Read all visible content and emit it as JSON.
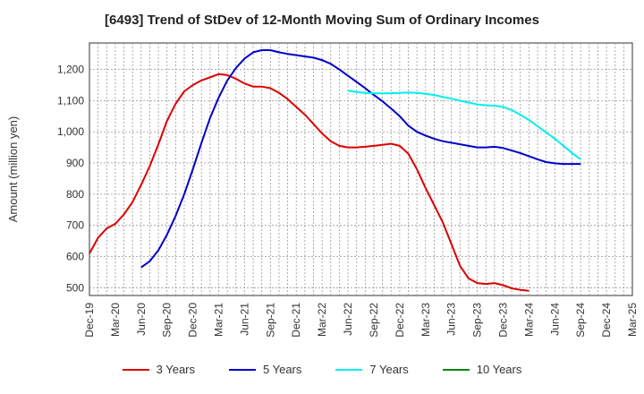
{
  "chart_data": {
    "type": "line",
    "title": "[6493]  Trend of StDev of 12-Month Moving Sum of Ordinary Incomes",
    "xlabel": "",
    "ylabel": "Amount (million yen)",
    "ylim": [
      475,
      1285
    ],
    "yticks": [
      500,
      600,
      700,
      800,
      900,
      1000,
      1100,
      1200
    ],
    "ytick_labels": [
      "500",
      "600",
      "700",
      "800",
      "900",
      "1,000",
      "1,100",
      "1,200"
    ],
    "xticks": [
      "Dec-19",
      "Mar-20",
      "Jun-20",
      "Sep-20",
      "Dec-20",
      "Mar-21",
      "Jun-21",
      "Sep-21",
      "Dec-21",
      "Mar-22",
      "Jun-22",
      "Sep-22",
      "Dec-22",
      "Mar-23",
      "Jun-23",
      "Sep-23",
      "Dec-23",
      "Mar-24",
      "Jun-24",
      "Sep-24",
      "Dec-24",
      "Mar-25"
    ],
    "x_start": "Dec-19",
    "grid": true,
    "series": [
      {
        "name": "3 Years",
        "color": "#dd0000",
        "start_index": 0,
        "values": [
          610,
          660,
          690,
          705,
          735,
          775,
          830,
          890,
          960,
          1035,
          1090,
          1130,
          1150,
          1165,
          1175,
          1185,
          1182,
          1170,
          1155,
          1145,
          1145,
          1140,
          1125,
          1105,
          1080,
          1055,
          1025,
          995,
          970,
          955,
          950,
          950,
          952,
          955,
          958,
          962,
          955,
          930,
          880,
          820,
          765,
          710,
          640,
          570,
          530,
          515,
          512,
          515,
          508,
          498,
          493,
          490
        ]
      },
      {
        "name": "5 Years",
        "color": "#0000cc",
        "start_index": 6,
        "values": [
          565,
          585,
          620,
          670,
          730,
          800,
          880,
          965,
          1045,
          1110,
          1165,
          1205,
          1235,
          1255,
          1262,
          1262,
          1255,
          1250,
          1246,
          1242,
          1238,
          1230,
          1218,
          1200,
          1180,
          1160,
          1140,
          1118,
          1098,
          1075,
          1050,
          1020,
          1000,
          988,
          978,
          970,
          965,
          960,
          955,
          950,
          950,
          952,
          948,
          940,
          932,
          922,
          912,
          903,
          899,
          897,
          897,
          897
        ]
      },
      {
        "name": "7 Years",
        "color": "#00eeee",
        "start_index": 30,
        "values": [
          1132,
          1128,
          1125,
          1124,
          1123,
          1124,
          1125,
          1126,
          1125,
          1122,
          1118,
          1112,
          1106,
          1100,
          1094,
          1088,
          1085,
          1084,
          1080,
          1070,
          1055,
          1038,
          1018,
          998,
          978,
          955,
          932,
          912
        ]
      },
      {
        "name": "10 Years",
        "color": "#008800",
        "start_index": 0,
        "values": []
      }
    ]
  }
}
